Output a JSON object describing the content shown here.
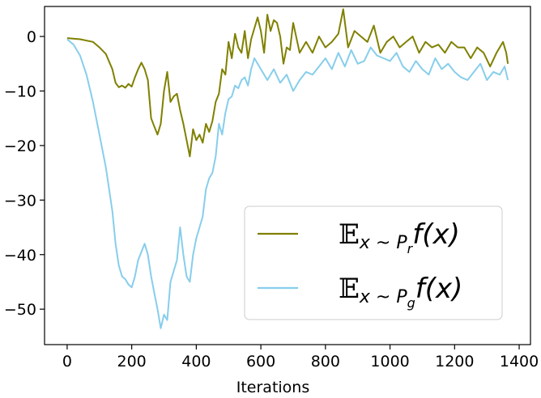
{
  "chart_data": {
    "type": "line",
    "xlabel": "Iterations",
    "ylabel": "",
    "title": "",
    "xlim": [
      -70,
      1435
    ],
    "ylim": [
      -56.5,
      5.5
    ],
    "xticks": [
      0,
      200,
      400,
      600,
      800,
      1000,
      1200,
      1400
    ],
    "yticks": [
      0,
      -10,
      -20,
      -30,
      -40,
      -50
    ],
    "grid": false,
    "legend_placement": "lower-right",
    "series": [
      {
        "name": "E_{x~P_r} f(x)",
        "legend_parts": {
          "main": "𝔼",
          "sub1": "x ~ P",
          "sub2": "r",
          "fx": "f(x)"
        },
        "color": "#808000",
        "x": [
          0,
          40,
          80,
          100,
          120,
          140,
          150,
          160,
          170,
          180,
          190,
          200,
          210,
          220,
          230,
          240,
          250,
          260,
          270,
          280,
          290,
          300,
          310,
          320,
          330,
          340,
          350,
          360,
          370,
          380,
          390,
          400,
          410,
          420,
          430,
          440,
          450,
          460,
          470,
          480,
          490,
          500,
          510,
          520,
          530,
          540,
          550,
          560,
          570,
          580,
          590,
          600,
          610,
          620,
          630,
          640,
          650,
          660,
          670,
          680,
          690,
          700,
          720,
          740,
          760,
          780,
          800,
          820,
          840,
          855,
          870,
          890,
          910,
          930,
          950,
          970,
          990,
          1010,
          1030,
          1050,
          1070,
          1090,
          1110,
          1130,
          1150,
          1170,
          1190,
          1210,
          1230,
          1250,
          1270,
          1290,
          1310,
          1330,
          1350,
          1360,
          1365
        ],
        "values": [
          -0.3,
          -0.5,
          -1.0,
          -2.0,
          -3.2,
          -6.0,
          -8.5,
          -9.3,
          -9.0,
          -9.4,
          -8.7,
          -9.2,
          -7.5,
          -6.0,
          -4.8,
          -6.0,
          -8.0,
          -15.0,
          -16.5,
          -18.0,
          -16.0,
          -10.0,
          -6.5,
          -12.0,
          -11.0,
          -10.5,
          -13.5,
          -16.0,
          -19.0,
          -22.0,
          -17.0,
          -19.0,
          -18.0,
          -19.5,
          -16.0,
          -17.5,
          -15.5,
          -12.0,
          -10.5,
          -6.0,
          -7.0,
          -1.0,
          -4.0,
          0.5,
          -2.0,
          -3.0,
          1.0,
          -4.0,
          -0.5,
          1.5,
          3.5,
          1.0,
          -3.0,
          4.0,
          1.0,
          3.0,
          2.5,
          0.0,
          -5.0,
          -2.0,
          -2.5,
          2.5,
          -3.0,
          -1.0,
          -3.0,
          0.0,
          -2.0,
          -1.0,
          0.5,
          5.0,
          -2.0,
          1.0,
          0.0,
          -1.0,
          2.0,
          -3.0,
          -1.0,
          0.0,
          -2.0,
          -1.0,
          0.0,
          -3.0,
          -1.0,
          -2.0,
          -1.5,
          -3.0,
          -1.0,
          -2.0,
          -2.0,
          -4.0,
          -2.0,
          -3.0,
          -5.5,
          -3.0,
          -1.0,
          -3.0,
          -5.0
        ]
      },
      {
        "name": "E_{x~P_g} f(x)",
        "legend_parts": {
          "main": "𝔼",
          "sub1": "x ~ P",
          "sub2": "g",
          "fx": "f(x)"
        },
        "color": "#87CEEB",
        "x": [
          0,
          20,
          40,
          60,
          80,
          100,
          120,
          140,
          150,
          160,
          170,
          180,
          190,
          200,
          210,
          220,
          230,
          240,
          250,
          260,
          270,
          280,
          290,
          300,
          310,
          320,
          330,
          340,
          350,
          360,
          370,
          380,
          390,
          400,
          410,
          420,
          430,
          440,
          450,
          460,
          470,
          480,
          490,
          500,
          510,
          520,
          530,
          540,
          550,
          560,
          570,
          580,
          600,
          620,
          640,
          660,
          680,
          700,
          720,
          740,
          760,
          780,
          800,
          820,
          840,
          860,
          880,
          900,
          920,
          940,
          960,
          980,
          1000,
          1020,
          1040,
          1060,
          1080,
          1100,
          1120,
          1140,
          1160,
          1180,
          1200,
          1220,
          1240,
          1260,
          1280,
          1300,
          1320,
          1340,
          1355,
          1365
        ],
        "values": [
          -0.5,
          -1.5,
          -3.5,
          -7.0,
          -12.0,
          -18.0,
          -24.0,
          -32.0,
          -38.0,
          -42.0,
          -44.0,
          -44.5,
          -45.5,
          -46.0,
          -44.0,
          -41.0,
          -39.5,
          -38.0,
          -40.0,
          -44.0,
          -47.0,
          -50.0,
          -53.5,
          -51.0,
          -52.0,
          -45.0,
          -43.0,
          -41.0,
          -35.0,
          -40.0,
          -44.0,
          -45.0,
          -40.0,
          -37.0,
          -35.0,
          -33.0,
          -28.0,
          -26.0,
          -25.0,
          -22.0,
          -16.0,
          -18.0,
          -14.0,
          -11.5,
          -11.0,
          -9.0,
          -9.5,
          -8.0,
          -7.5,
          -9.0,
          -6.0,
          -4.0,
          -6.0,
          -8.0,
          -6.0,
          -8.5,
          -7.0,
          -10.0,
          -8.0,
          -6.5,
          -7.0,
          -5.5,
          -4.0,
          -6.0,
          -3.0,
          -5.5,
          -2.5,
          -5.0,
          -4.5,
          -2.0,
          -3.5,
          -4.0,
          -4.5,
          -3.0,
          -5.5,
          -6.5,
          -4.5,
          -6.0,
          -7.0,
          -4.0,
          -6.0,
          -5.0,
          -6.5,
          -7.5,
          -8.0,
          -6.5,
          -5.0,
          -8.0,
          -6.5,
          -7.0,
          -5.5,
          -8.0
        ]
      }
    ]
  }
}
